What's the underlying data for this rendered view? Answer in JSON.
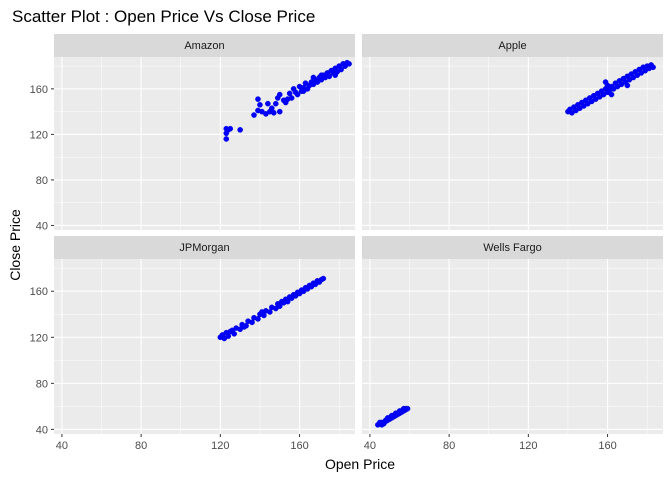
{
  "chart_data": {
    "type": "scatter",
    "title": "Scatter Plot : Open Price Vs Close Price",
    "xlabel": "Open Price",
    "ylabel": "Close Price",
    "xlim": [
      36,
      188
    ],
    "ylim": [
      36,
      188
    ],
    "x_ticks": [
      40,
      80,
      120,
      160
    ],
    "y_ticks": [
      40,
      80,
      120,
      160
    ],
    "grid": true,
    "point_color": "#0000ff",
    "panel_background": "#ebebeb",
    "strip_background": "#d9d9d9",
    "facets": [
      {
        "name": "Amazon",
        "points": [
          [
            123,
            125
          ],
          [
            124,
            124
          ],
          [
            123,
            121
          ],
          [
            123,
            116
          ],
          [
            125,
            125
          ],
          [
            130,
            124
          ],
          [
            137,
            137
          ],
          [
            139,
            141
          ],
          [
            140,
            146
          ],
          [
            139,
            151
          ],
          [
            141,
            140
          ],
          [
            143,
            138
          ],
          [
            144,
            147
          ],
          [
            145,
            140
          ],
          [
            146,
            143
          ],
          [
            147,
            139
          ],
          [
            148,
            147
          ],
          [
            149,
            152
          ],
          [
            150,
            140
          ],
          [
            150,
            155
          ],
          [
            152,
            150
          ],
          [
            153,
            148
          ],
          [
            154,
            151
          ],
          [
            155,
            156
          ],
          [
            156,
            152
          ],
          [
            157,
            160
          ],
          [
            158,
            157
          ],
          [
            159,
            155
          ],
          [
            160,
            162
          ],
          [
            161,
            158
          ],
          [
            162,
            161
          ],
          [
            163,
            165
          ],
          [
            164,
            160
          ],
          [
            165,
            163
          ],
          [
            166,
            166
          ],
          [
            167,
            164
          ],
          [
            168,
            168
          ],
          [
            169,
            166
          ],
          [
            170,
            170
          ],
          [
            171,
            168
          ],
          [
            172,
            172
          ],
          [
            173,
            170
          ],
          [
            174,
            174
          ],
          [
            175,
            171
          ],
          [
            176,
            176
          ],
          [
            177,
            174
          ],
          [
            178,
            178
          ],
          [
            179,
            175
          ],
          [
            180,
            180
          ],
          [
            181,
            177
          ],
          [
            182,
            182
          ],
          [
            183,
            180
          ],
          [
            184,
            183
          ],
          [
            185,
            182
          ],
          [
            178,
            172
          ],
          [
            171,
            172
          ],
          [
            167,
            170
          ],
          [
            162,
            158
          ]
        ]
      },
      {
        "name": "Apple",
        "points": [
          [
            140,
            140
          ],
          [
            141,
            142
          ],
          [
            142,
            139
          ],
          [
            143,
            144
          ],
          [
            144,
            141
          ],
          [
            145,
            146
          ],
          [
            146,
            143
          ],
          [
            147,
            148
          ],
          [
            148,
            145
          ],
          [
            149,
            150
          ],
          [
            150,
            147
          ],
          [
            151,
            152
          ],
          [
            152,
            149
          ],
          [
            153,
            154
          ],
          [
            154,
            151
          ],
          [
            155,
            156
          ],
          [
            156,
            153
          ],
          [
            157,
            158
          ],
          [
            158,
            155
          ],
          [
            159,
            160
          ],
          [
            160,
            157
          ],
          [
            160,
            163
          ],
          [
            161,
            159
          ],
          [
            162,
            162
          ],
          [
            163,
            160
          ],
          [
            164,
            165
          ],
          [
            165,
            162
          ],
          [
            166,
            167
          ],
          [
            167,
            164
          ],
          [
            168,
            169
          ],
          [
            169,
            166
          ],
          [
            170,
            171
          ],
          [
            171,
            168
          ],
          [
            172,
            173
          ],
          [
            173,
            170
          ],
          [
            174,
            175
          ],
          [
            175,
            172
          ],
          [
            176,
            177
          ],
          [
            177,
            174
          ],
          [
            178,
            179
          ],
          [
            179,
            176
          ],
          [
            180,
            180
          ],
          [
            181,
            178
          ],
          [
            182,
            181
          ],
          [
            183,
            179
          ],
          [
            159,
            166
          ],
          [
            162,
            155
          ],
          [
            170,
            163
          ]
        ]
      },
      {
        "name": "JPMorgan",
        "points": [
          [
            120,
            120
          ],
          [
            121,
            122
          ],
          [
            122,
            119
          ],
          [
            123,
            124
          ],
          [
            124,
            121
          ],
          [
            126,
            126
          ],
          [
            127,
            123
          ],
          [
            128,
            128
          ],
          [
            130,
            127
          ],
          [
            131,
            131
          ],
          [
            133,
            130
          ],
          [
            134,
            134
          ],
          [
            136,
            133
          ],
          [
            137,
            137
          ],
          [
            139,
            136
          ],
          [
            140,
            140
          ],
          [
            142,
            139
          ],
          [
            143,
            143
          ],
          [
            145,
            142
          ],
          [
            146,
            146
          ],
          [
            148,
            145
          ],
          [
            149,
            149
          ],
          [
            150,
            147
          ],
          [
            151,
            151
          ],
          [
            152,
            150
          ],
          [
            153,
            153
          ],
          [
            154,
            151
          ],
          [
            155,
            155
          ],
          [
            156,
            154
          ],
          [
            157,
            157
          ],
          [
            158,
            156
          ],
          [
            159,
            159
          ],
          [
            160,
            158
          ],
          [
            161,
            161
          ],
          [
            162,
            160
          ],
          [
            163,
            163
          ],
          [
            164,
            162
          ],
          [
            165,
            165
          ],
          [
            166,
            164
          ],
          [
            167,
            167
          ],
          [
            168,
            166
          ],
          [
            169,
            169
          ],
          [
            170,
            168
          ],
          [
            171,
            170
          ],
          [
            172,
            171
          ],
          [
            125,
            125
          ],
          [
            132,
            129
          ],
          [
            141,
            142
          ]
        ]
      },
      {
        "name": "Wells Fargo",
        "points": [
          [
            44,
            44
          ],
          [
            45,
            45
          ],
          [
            46,
            44
          ],
          [
            46,
            46
          ],
          [
            47,
            46
          ],
          [
            48,
            47
          ],
          [
            48,
            48
          ],
          [
            49,
            48
          ],
          [
            50,
            49
          ],
          [
            50,
            50
          ],
          [
            51,
            50
          ],
          [
            52,
            51
          ],
          [
            52,
            52
          ],
          [
            53,
            52
          ],
          [
            54,
            53
          ],
          [
            54,
            54
          ],
          [
            55,
            54
          ],
          [
            56,
            55
          ],
          [
            56,
            56
          ],
          [
            57,
            56
          ],
          [
            58,
            57
          ],
          [
            58,
            58
          ],
          [
            59,
            58
          ],
          [
            45,
            46
          ],
          [
            47,
            45
          ],
          [
            49,
            50
          ],
          [
            51,
            52
          ],
          [
            53,
            54
          ],
          [
            55,
            56
          ],
          [
            57,
            58
          ]
        ]
      }
    ]
  }
}
